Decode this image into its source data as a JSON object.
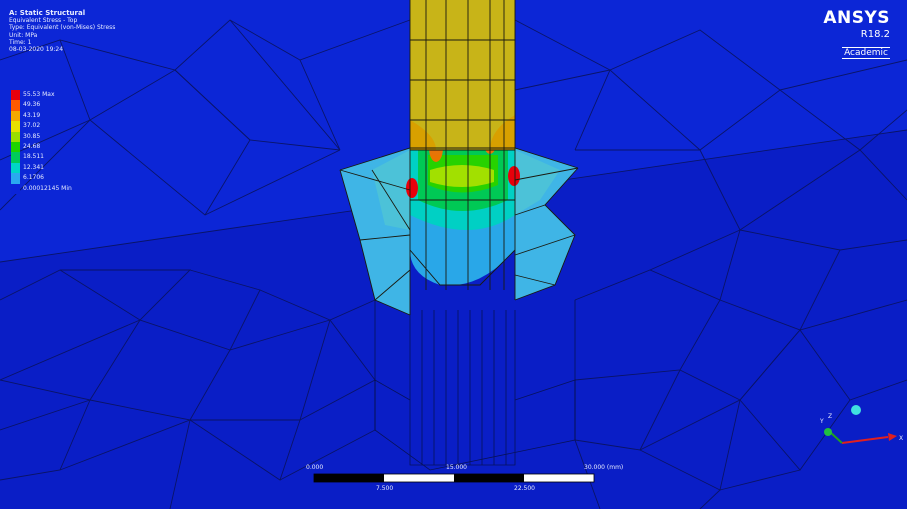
{
  "info": {
    "title": "A: Static Structural",
    "lines": [
      "Equivalent Stress - Top",
      "Type: Equivalent (von-Mises) Stress",
      "Unit: MPa",
      "Time: 1",
      "08-03-2020 19:24"
    ]
  },
  "legend": [
    {
      "value": "55.53 Max",
      "color": "#e8000b"
    },
    {
      "value": "49.36",
      "color": "#ff5a00"
    },
    {
      "value": "43.19",
      "color": "#f5a800"
    },
    {
      "value": "37.02",
      "color": "#e8e000"
    },
    {
      "value": "30.85",
      "color": "#9adf00"
    },
    {
      "value": "24.68",
      "color": "#1ed400"
    },
    {
      "value": "18.511",
      "color": "#00cc5a"
    },
    {
      "value": "12.341",
      "color": "#00d6c7"
    },
    {
      "value": "6.1706",
      "color": "#2aa9f0"
    },
    {
      "value": "0.00012145 Min",
      "color": "#0b24d8"
    }
  ],
  "brand": {
    "name": "ANSYS",
    "version": "R18.2",
    "edition": "Academic"
  },
  "scale": {
    "ticks": [
      "0.000",
      "15.000",
      "30.000 (mm)"
    ],
    "mid": [
      "7.500",
      "22.500"
    ]
  },
  "colors": {
    "background": "#0a1fcf",
    "column": "#c8b418"
  }
}
